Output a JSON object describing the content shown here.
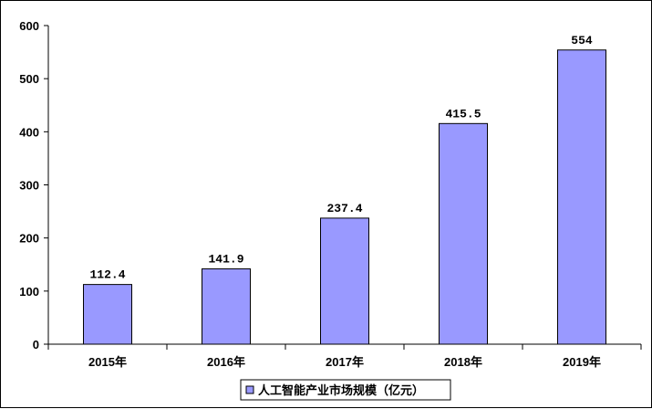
{
  "chart_data": {
    "type": "bar",
    "categories": [
      "2015年",
      "2016年",
      "2017年",
      "2018年",
      "2019年"
    ],
    "series": [
      {
        "name": "人工智能产业市场规模（亿元）",
        "values": [
          112.4,
          141.9,
          237.4,
          415.5,
          554
        ],
        "labels": [
          "112.4",
          "141.9",
          "237.4",
          "415.5",
          "554"
        ]
      }
    ],
    "y_ticks": [
      "0",
      "100",
      "200",
      "300",
      "400",
      "500",
      "600"
    ],
    "ylim": [
      0,
      600
    ],
    "grid": false,
    "legend_position": "bottom-center",
    "colors": {
      "bar": "#9999ff",
      "bar_stroke": "#000000",
      "axis": "#000000"
    }
  }
}
